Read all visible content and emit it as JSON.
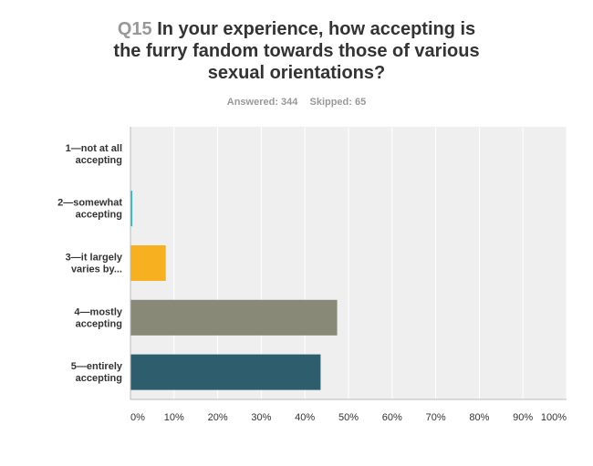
{
  "question": {
    "number": "Q15",
    "title_lines": [
      "In your experience, how accepting is",
      "the furry fandom towards those of various",
      "sexual orientations?"
    ]
  },
  "summary": {
    "answered": "Answered: 344",
    "skipped": "Skipped: 65"
  },
  "chart_data": {
    "type": "bar",
    "orientation": "horizontal",
    "categories": [
      [
        "1—not at all",
        "accepting"
      ],
      [
        "2—somewhat",
        "accepting"
      ],
      [
        "3—it largely",
        "varies by..."
      ],
      [
        "4—mostly",
        "accepting"
      ],
      [
        "5—entirely",
        "accepting"
      ]
    ],
    "values": [
      0,
      0.3,
      8.1,
      47.4,
      43.6
    ],
    "colors": [
      "#2e9fd8",
      "#32b2c2",
      "#f7b01f",
      "#888a77",
      "#2e5e6e"
    ],
    "x_ticks": [
      "0%",
      "10%",
      "20%",
      "30%",
      "40%",
      "50%",
      "60%",
      "70%",
      "80%",
      "90%",
      "100%"
    ],
    "xlim": [
      0,
      100
    ],
    "grid": true
  }
}
